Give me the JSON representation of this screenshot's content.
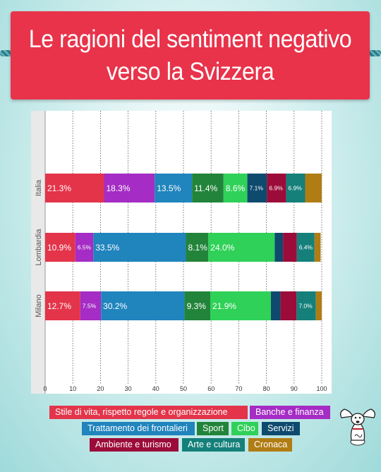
{
  "title": "Le ragioni del sentiment negativo verso la Svizzera",
  "chart_data": {
    "type": "bar",
    "orientation": "horizontal",
    "stacked": true,
    "categories": [
      "Italia",
      "Lombardia",
      "Milano"
    ],
    "series": [
      {
        "name": "Stile di vita, rispetto regole e organizzazione",
        "color": "#e3344a",
        "values": [
          21.3,
          10.9,
          12.7
        ],
        "labels": [
          "21.3%",
          "10.9%",
          "12.7%"
        ]
      },
      {
        "name": "Banche e finanza",
        "color": "#a52cc4",
        "values": [
          18.3,
          6.5,
          7.5
        ],
        "labels": [
          "18.3%",
          "6.5%",
          "7.5%"
        ]
      },
      {
        "name": "Trattamento dei frontalieri",
        "color": "#2084bd",
        "values": [
          13.5,
          33.5,
          30.2
        ],
        "labels": [
          "13.5%",
          "33.5%",
          "30.2%"
        ]
      },
      {
        "name": "Sport",
        "color": "#22843a",
        "values": [
          11.4,
          8.1,
          9.3
        ],
        "labels": [
          "11.4%",
          "8.1%",
          "9.3%"
        ]
      },
      {
        "name": "Cibo",
        "color": "#2fd158",
        "values": [
          8.6,
          24.0,
          21.9
        ],
        "labels": [
          "8.6%",
          "24.0%",
          "21.9%"
        ]
      },
      {
        "name": "Servizi",
        "color": "#0e4a6e",
        "values": [
          7.1,
          3.0,
          3.5
        ],
        "labels": [
          "7.1%",
          "",
          ""
        ]
      },
      {
        "name": "Ambiente e turismo",
        "color": "#9c0c3a",
        "values": [
          6.9,
          5.0,
          5.8
        ],
        "labels": [
          "6.9%",
          "",
          ""
        ]
      },
      {
        "name": "Arte e cultura",
        "color": "#15807a",
        "values": [
          6.9,
          6.4,
          7.0
        ],
        "labels": [
          "6.9%",
          "6.4%",
          "7.0%"
        ]
      },
      {
        "name": "Cronaca",
        "color": "#b07d14",
        "values": [
          6.0,
          2.2,
          2.1
        ],
        "labels": [
          "",
          "",
          ""
        ]
      }
    ],
    "xlim": [
      0,
      100
    ],
    "xticks": [
      0,
      10,
      20,
      30,
      40,
      50,
      60,
      70,
      80,
      90,
      100
    ],
    "grid": true,
    "legend": "bottom"
  }
}
